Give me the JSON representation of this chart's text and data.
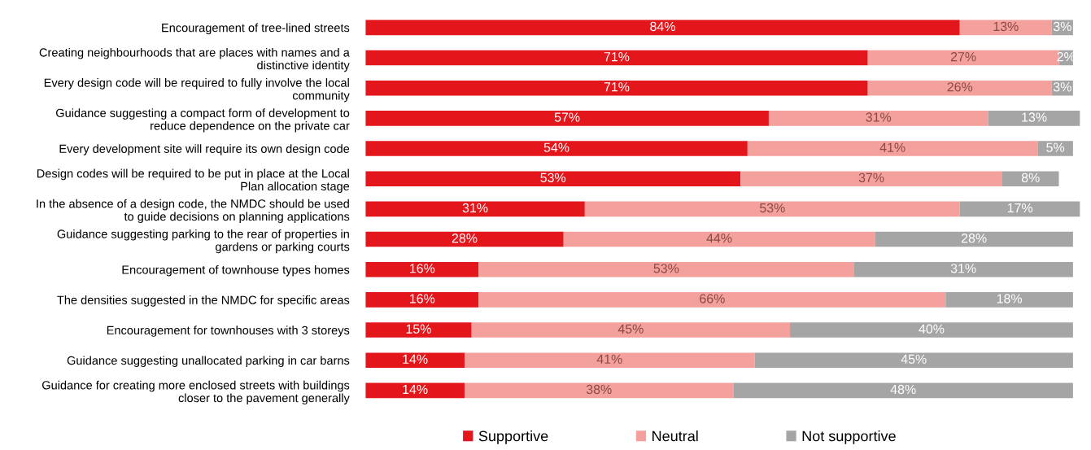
{
  "chart_data": {
    "type": "bar",
    "orientation": "horizontal",
    "stacked": true,
    "legend": "bottom",
    "grid": false,
    "categories": [
      "Encouragement of tree-lined streets",
      "Creating neighbourhoods that are places with names and a\ndistinctive identity",
      "Every design code will be required to fully involve the local\ncommunity",
      "Guidance suggesting a compact form of development to\nreduce dependence on the private car",
      "Every development site will require its own design code",
      "Design codes will be required to be put in place at the Local\nPlan allocation stage",
      "In the absence of a design code, the NMDC should be used\nto guide decisions on planning applications",
      "Guidance suggesting parking to the rear of properties in\ngardens or parking courts",
      "Encouragement of townhouse types homes",
      "The densities suggested in the NMDC for specific areas",
      "Encouragement for townhouses with 3 storeys",
      "Guidance suggesting unallocated parking in car barns",
      "Guidance for creating more enclosed streets with buildings\ncloser to the pavement generally"
    ],
    "series": [
      {
        "name": "Supportive",
        "color": "#e3161c",
        "values": [
          84,
          71,
          71,
          57,
          54,
          53,
          31,
          28,
          16,
          16,
          15,
          14,
          14
        ],
        "value_labels": [
          "84%",
          "71%",
          "71%",
          "57%",
          "54%",
          "53%",
          "31%",
          "28%",
          "16%",
          "16%",
          "15%",
          "14%",
          "14%"
        ]
      },
      {
        "name": "Neutral",
        "color": "#f4a19d",
        "values": [
          13,
          27,
          26,
          31,
          41,
          37,
          53,
          44,
          53,
          66,
          45,
          41,
          38
        ],
        "value_labels": [
          "13%",
          "27%",
          "26%",
          "31%",
          "41%",
          "37%",
          "53%",
          "44%",
          "53%",
          "66%",
          "45%",
          "41%",
          "38%"
        ]
      },
      {
        "name": "Not supportive",
        "color": "#a5a5a5",
        "values": [
          3,
          2,
          3,
          13,
          5,
          8,
          17,
          28,
          31,
          18,
          40,
          45,
          48
        ],
        "value_labels": [
          "3%",
          "2%",
          "3%",
          "13%",
          "5%",
          "8%",
          "17%",
          "28%",
          "31%",
          "18%",
          "40%",
          "45%",
          "48%"
        ]
      }
    ]
  }
}
